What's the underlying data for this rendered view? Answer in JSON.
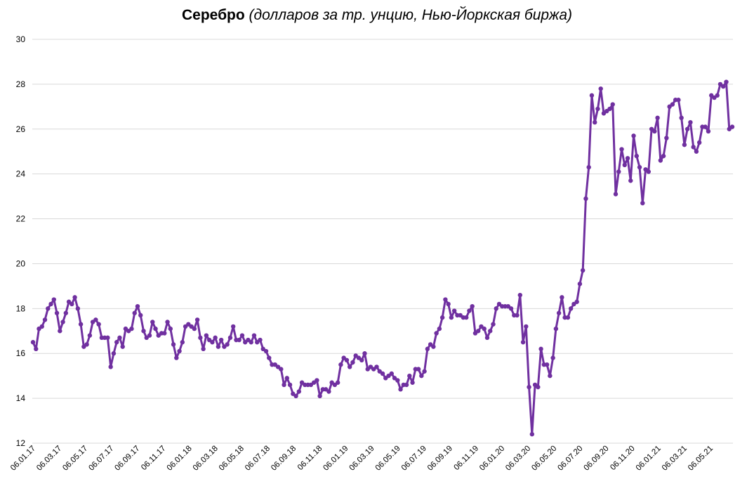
{
  "chart_data": {
    "type": "line",
    "title": "Серебро",
    "subtitle": "(долларов за тр. унцию, Нью-Йоркская биржа)",
    "xlabel": "",
    "ylabel": "",
    "ylim": [
      12,
      30
    ],
    "yticks": [
      12,
      14,
      16,
      18,
      20,
      22,
      24,
      26,
      28,
      30
    ],
    "grid": true,
    "colors": {
      "line": "#7030a0",
      "grid": "#d9d9d9"
    },
    "xtick_labels": [
      "06.01.17",
      "06.03.17",
      "06.05.17",
      "06.07.17",
      "06.09.17",
      "06.11.17",
      "06.01.18",
      "06.03.18",
      "06.05.18",
      "06.07.18",
      "06.09.18",
      "06.11.18",
      "06.01.19",
      "06.03.19",
      "06.05.19",
      "06.07.19",
      "06.09.19",
      "06.11.19",
      "06.01.20",
      "06.03.20",
      "06.05.20",
      "06.07.20",
      "06.09.20",
      "06.11.20",
      "06.01.21",
      "06.03.21",
      "06.05.21"
    ],
    "x_start": "06.01.17",
    "x_interval_weeks": 1,
    "series": [
      {
        "values": [
          16.5,
          16.2,
          17.1,
          17.2,
          17.5,
          18.0,
          18.2,
          18.4,
          17.8,
          17.0,
          17.4,
          17.8,
          18.3,
          18.2,
          18.5,
          18.0,
          17.3,
          16.3,
          16.4,
          16.8,
          17.4,
          17.5,
          17.3,
          16.7,
          16.7,
          16.7,
          15.4,
          16.0,
          16.5,
          16.7,
          16.3,
          17.1,
          17.0,
          17.1,
          17.8,
          18.1,
          17.7,
          17.0,
          16.7,
          16.8,
          17.4,
          17.1,
          16.8,
          16.9,
          16.9,
          17.4,
          17.1,
          16.4,
          15.8,
          16.1,
          16.5,
          17.2,
          17.3,
          17.2,
          17.1,
          17.5,
          16.7,
          16.2,
          16.8,
          16.6,
          16.5,
          16.7,
          16.3,
          16.6,
          16.3,
          16.4,
          16.7,
          17.2,
          16.6,
          16.6,
          16.8,
          16.5,
          16.6,
          16.5,
          16.8,
          16.5,
          16.6,
          16.2,
          16.1,
          15.8,
          15.5,
          15.5,
          15.4,
          15.3,
          14.6,
          14.9,
          14.6,
          14.2,
          14.1,
          14.3,
          14.7,
          14.6,
          14.6,
          14.6,
          14.7,
          14.8,
          14.1,
          14.4,
          14.4,
          14.3,
          14.7,
          14.6,
          14.7,
          15.5,
          15.8,
          15.7,
          15.4,
          15.6,
          15.9,
          15.8,
          15.7,
          16.0,
          15.3,
          15.4,
          15.3,
          15.4,
          15.2,
          15.1,
          14.9,
          15.0,
          15.1,
          14.9,
          14.8,
          14.4,
          14.6,
          14.6,
          15.0,
          14.7,
          15.3,
          15.3,
          15.0,
          15.2,
          16.2,
          16.4,
          16.3,
          16.9,
          17.1,
          17.6,
          18.4,
          18.2,
          17.6,
          17.9,
          17.7,
          17.7,
          17.6,
          17.6,
          17.9,
          18.1,
          16.9,
          17.0,
          17.2,
          17.1,
          16.7,
          17.0,
          17.3,
          18.0,
          18.2,
          18.1,
          18.1,
          18.1,
          18.0,
          17.7,
          17.7,
          18.6,
          16.5,
          17.2,
          14.5,
          12.4,
          14.6,
          14.5,
          16.2,
          15.5,
          15.5,
          15.0,
          15.8,
          17.1,
          17.8,
          18.5,
          17.6,
          17.6,
          18.0,
          18.2,
          18.3,
          19.1,
          19.7,
          22.9,
          24.3,
          27.5,
          26.3,
          26.9,
          27.8,
          26.7,
          26.8,
          26.9,
          27.1,
          23.1,
          24.1,
          25.1,
          24.4,
          24.7,
          23.7,
          25.7,
          24.8,
          24.3,
          22.7,
          24.2,
          24.1,
          26.0,
          25.9,
          26.5,
          24.6,
          24.8,
          25.6,
          27.0,
          27.1,
          27.3,
          27.3,
          26.5,
          25.3,
          26.0,
          26.3,
          25.2,
          25.0,
          25.4,
          26.1,
          26.1,
          25.9,
          27.5,
          27.4,
          27.5,
          28.0,
          27.9,
          28.1,
          26.0,
          26.1
        ]
      }
    ]
  }
}
